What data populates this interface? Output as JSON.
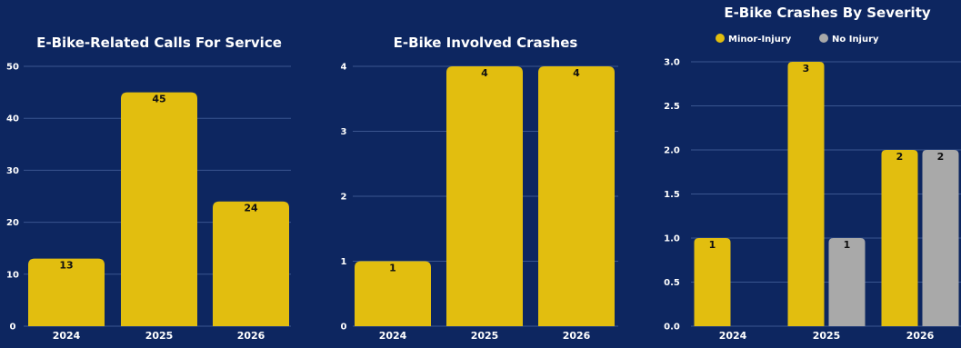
{
  "colors": {
    "background": "#0d2660",
    "gridline": "#3a558f",
    "bar_primary": "#e2be0f",
    "bar_secondary": "#a9a9a9",
    "text": "#ffffff",
    "data_label": "#111111"
  },
  "chart_data": [
    {
      "type": "bar",
      "title": "E-Bike-Related Calls For Service",
      "categories": [
        "2024",
        "2025",
        "2026"
      ],
      "values": [
        13,
        45,
        24
      ],
      "data_labels": [
        "13",
        "45",
        "24"
      ],
      "ylim": [
        0,
        50
      ],
      "yticks": [
        0,
        10,
        20,
        30,
        40,
        50
      ],
      "ytick_labels": [
        "0",
        "10",
        "20",
        "30",
        "40",
        "50"
      ],
      "grid": true,
      "xlabel": "",
      "ylabel": ""
    },
    {
      "type": "bar",
      "title": "E-Bike Involved Crashes",
      "categories": [
        "2024",
        "2025",
        "2026"
      ],
      "values": [
        1,
        4,
        4
      ],
      "data_labels": [
        "1",
        "4",
        "4"
      ],
      "ylim": [
        0,
        4
      ],
      "yticks": [
        0,
        1,
        2,
        3,
        4
      ],
      "ytick_labels": [
        "0",
        "1",
        "2",
        "3",
        "4"
      ],
      "grid": true,
      "xlabel": "",
      "ylabel": ""
    },
    {
      "type": "bar",
      "title": "E-Bike Crashes By Severity",
      "categories": [
        "2024",
        "2025",
        "2026"
      ],
      "series": [
        {
          "name": "Minor-Injury",
          "values": [
            1,
            3,
            2
          ],
          "data_labels": [
            "1",
            "3",
            "2"
          ],
          "color": "#e2be0f"
        },
        {
          "name": "No Injury",
          "values": [
            0,
            1,
            2
          ],
          "data_labels": [
            "",
            "1",
            "2"
          ],
          "color": "#a9a9a9"
        }
      ],
      "ylim": [
        0,
        3
      ],
      "yticks": [
        0,
        0.5,
        1,
        1.5,
        2,
        2.5,
        3
      ],
      "ytick_labels": [
        "0.0",
        "0.5",
        "1.0",
        "1.5",
        "2.0",
        "2.5",
        "3.0"
      ],
      "grid": true,
      "legend": "top",
      "xlabel": "",
      "ylabel": ""
    }
  ]
}
